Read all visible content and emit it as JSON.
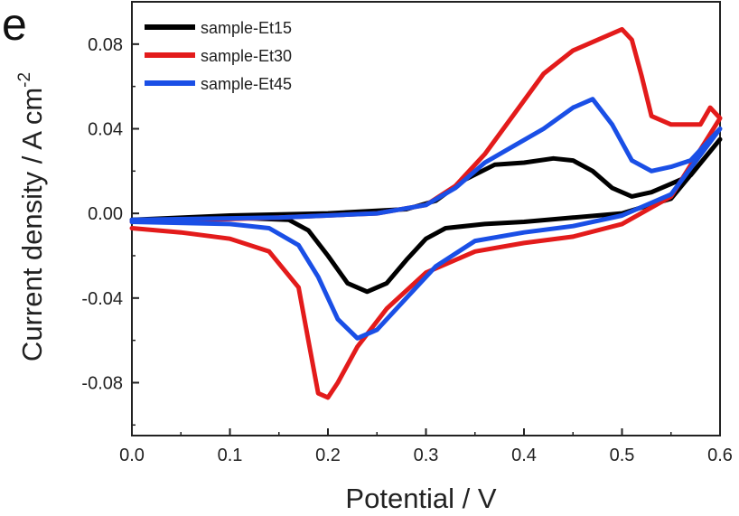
{
  "panel_label": "e",
  "chart_data": {
    "type": "line",
    "title": "",
    "xlabel": "Potential / V",
    "ylabel": "Current density / A cm",
    "ylabel_superscript": "-2",
    "xlim": [
      0.0,
      0.6
    ],
    "ylim": [
      -0.105,
      0.1
    ],
    "xticks": [
      "0.0",
      "0.1",
      "0.2",
      "0.3",
      "0.4",
      "0.5",
      "0.6"
    ],
    "yticks": [
      "-0.08",
      "-0.04",
      "0.00",
      "0.04",
      "0.08"
    ],
    "grid": false,
    "legend_position": "top-left",
    "series": [
      {
        "name": "sample-Et15",
        "color": "#000000",
        "points": [
          [
            0.0,
            -0.003
          ],
          [
            0.1,
            -0.002
          ],
          [
            0.16,
            -0.003
          ],
          [
            0.18,
            -0.008
          ],
          [
            0.2,
            -0.02
          ],
          [
            0.22,
            -0.033
          ],
          [
            0.24,
            -0.037
          ],
          [
            0.26,
            -0.033
          ],
          [
            0.28,
            -0.022
          ],
          [
            0.3,
            -0.012
          ],
          [
            0.32,
            -0.007
          ],
          [
            0.36,
            -0.005
          ],
          [
            0.4,
            -0.004
          ],
          [
            0.45,
            -0.002
          ],
          [
            0.5,
            0.0
          ],
          [
            0.55,
            0.007
          ],
          [
            0.6,
            0.035
          ],
          [
            0.57,
            0.018
          ],
          [
            0.55,
            0.014
          ],
          [
            0.53,
            0.01
          ],
          [
            0.51,
            0.008
          ],
          [
            0.49,
            0.012
          ],
          [
            0.47,
            0.02
          ],
          [
            0.45,
            0.025
          ],
          [
            0.43,
            0.026
          ],
          [
            0.4,
            0.024
          ],
          [
            0.37,
            0.023
          ],
          [
            0.34,
            0.016
          ],
          [
            0.31,
            0.006
          ],
          [
            0.28,
            0.002
          ],
          [
            0.2,
            0.0
          ],
          [
            0.1,
            -0.001
          ],
          [
            0.0,
            -0.003
          ]
        ]
      },
      {
        "name": "sample-Et30",
        "color": "#e31b1b",
        "points": [
          [
            0.0,
            -0.007
          ],
          [
            0.05,
            -0.009
          ],
          [
            0.1,
            -0.012
          ],
          [
            0.14,
            -0.018
          ],
          [
            0.17,
            -0.035
          ],
          [
            0.18,
            -0.06
          ],
          [
            0.19,
            -0.085
          ],
          [
            0.2,
            -0.087
          ],
          [
            0.21,
            -0.08
          ],
          [
            0.23,
            -0.063
          ],
          [
            0.26,
            -0.045
          ],
          [
            0.3,
            -0.028
          ],
          [
            0.35,
            -0.018
          ],
          [
            0.4,
            -0.014
          ],
          [
            0.45,
            -0.011
          ],
          [
            0.5,
            -0.005
          ],
          [
            0.55,
            0.008
          ],
          [
            0.6,
            0.045
          ],
          [
            0.59,
            0.05
          ],
          [
            0.58,
            0.042
          ],
          [
            0.55,
            0.042
          ],
          [
            0.53,
            0.046
          ],
          [
            0.52,
            0.065
          ],
          [
            0.51,
            0.082
          ],
          [
            0.5,
            0.087
          ],
          [
            0.48,
            0.083
          ],
          [
            0.45,
            0.077
          ],
          [
            0.42,
            0.066
          ],
          [
            0.39,
            0.047
          ],
          [
            0.36,
            0.028
          ],
          [
            0.33,
            0.013
          ],
          [
            0.3,
            0.004
          ],
          [
            0.25,
            0.0
          ],
          [
            0.15,
            -0.002
          ],
          [
            0.0,
            -0.004
          ]
        ]
      },
      {
        "name": "sample-Et45",
        "color": "#1a4fe6",
        "points": [
          [
            0.0,
            -0.004
          ],
          [
            0.1,
            -0.005
          ],
          [
            0.14,
            -0.007
          ],
          [
            0.17,
            -0.015
          ],
          [
            0.19,
            -0.03
          ],
          [
            0.21,
            -0.05
          ],
          [
            0.23,
            -0.059
          ],
          [
            0.25,
            -0.055
          ],
          [
            0.28,
            -0.04
          ],
          [
            0.31,
            -0.025
          ],
          [
            0.35,
            -0.013
          ],
          [
            0.4,
            -0.009
          ],
          [
            0.45,
            -0.006
          ],
          [
            0.5,
            -0.001
          ],
          [
            0.55,
            0.009
          ],
          [
            0.6,
            0.04
          ],
          [
            0.57,
            0.025
          ],
          [
            0.55,
            0.022
          ],
          [
            0.53,
            0.02
          ],
          [
            0.51,
            0.025
          ],
          [
            0.49,
            0.042
          ],
          [
            0.47,
            0.054
          ],
          [
            0.45,
            0.05
          ],
          [
            0.42,
            0.04
          ],
          [
            0.39,
            0.032
          ],
          [
            0.36,
            0.024
          ],
          [
            0.33,
            0.012
          ],
          [
            0.3,
            0.004
          ],
          [
            0.25,
            0.0
          ],
          [
            0.15,
            -0.002
          ],
          [
            0.0,
            -0.003
          ]
        ]
      }
    ]
  }
}
